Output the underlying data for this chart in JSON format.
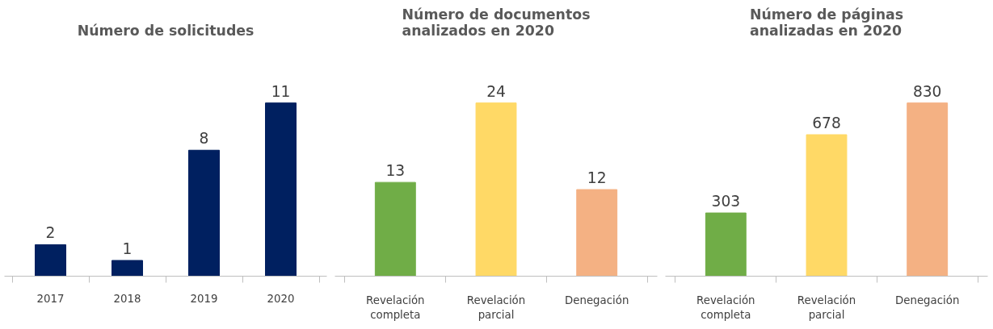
{
  "chart_data": [
    {
      "type": "bar",
      "title": "Número de solicitudes",
      "categories": [
        "2017",
        "2018",
        "2019",
        "2020"
      ],
      "values": [
        2,
        1,
        8,
        11
      ],
      "color": "#002060",
      "data_labels": true
    },
    {
      "type": "bar",
      "title": "Número de documentos analizados en 2020",
      "categories": [
        "Revelación completa",
        "Revelación parcial",
        "Denegación"
      ],
      "values": [
        13,
        24,
        12
      ],
      "colors": [
        "#70ad47",
        "#ffd966",
        "#f4b183"
      ],
      "data_labels": true
    },
    {
      "type": "bar",
      "title": "Número de páginas analizadas en 2020",
      "categories": [
        "Revelación completa",
        "Revelación parcial",
        "Denegación"
      ],
      "values": [
        303,
        678,
        830
      ],
      "colors": [
        "#70ad47",
        "#ffd966",
        "#f4b183"
      ],
      "data_labels": true
    }
  ]
}
